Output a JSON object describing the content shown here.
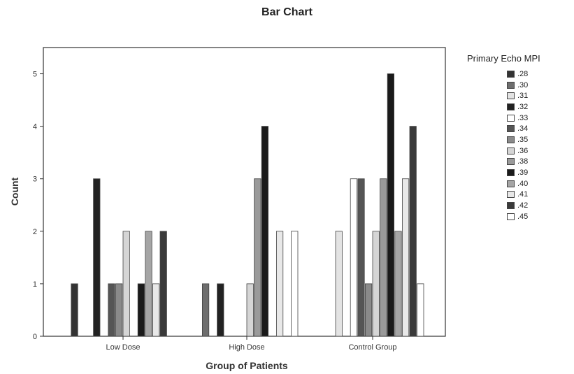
{
  "chart_data": {
    "type": "bar",
    "title": "Bar Chart",
    "xlabel": "Group of Patients",
    "ylabel": "Count",
    "ylim": [
      0,
      5.5
    ],
    "yticks": [
      "0",
      "1",
      "2",
      "3",
      "4",
      "5"
    ],
    "grid": false,
    "legend_position": "right",
    "legend_title": "Primary Echo MPI",
    "categories": [
      "Low Dose",
      "High Dose",
      "Control Group"
    ],
    "series": [
      {
        "name": ".28",
        "color": "#333333",
        "values": [
          1,
          0,
          0
        ]
      },
      {
        "name": ".30",
        "color": "#6e6e6e",
        "values": [
          0,
          1,
          0
        ]
      },
      {
        "name": ".31",
        "color": "#e3e3e3",
        "values": [
          0,
          0,
          2
        ]
      },
      {
        "name": ".32",
        "color": "#222222",
        "values": [
          3,
          1,
          0
        ]
      },
      {
        "name": ".33",
        "color": "#ffffff",
        "values": [
          0,
          0,
          3
        ]
      },
      {
        "name": ".34",
        "color": "#555555",
        "values": [
          1,
          0,
          3
        ]
      },
      {
        "name": ".35",
        "color": "#8a8a8a",
        "values": [
          1,
          0,
          1
        ]
      },
      {
        "name": ".36",
        "color": "#d5d5d5",
        "values": [
          2,
          1,
          2
        ]
      },
      {
        "name": ".38",
        "color": "#9a9a9a",
        "values": [
          0,
          3,
          3
        ]
      },
      {
        "name": ".39",
        "color": "#1a1a1a",
        "values": [
          1,
          4,
          5
        ]
      },
      {
        "name": ".40",
        "color": "#a5a5a5",
        "values": [
          2,
          0,
          2
        ]
      },
      {
        "name": ".41",
        "color": "#e8e8e8",
        "values": [
          1,
          2,
          3
        ]
      },
      {
        "name": ".42",
        "color": "#3a3a3a",
        "values": [
          2,
          0,
          4
        ]
      },
      {
        "name": ".45",
        "color": "#ffffff",
        "values": [
          0,
          2,
          1
        ]
      }
    ]
  }
}
